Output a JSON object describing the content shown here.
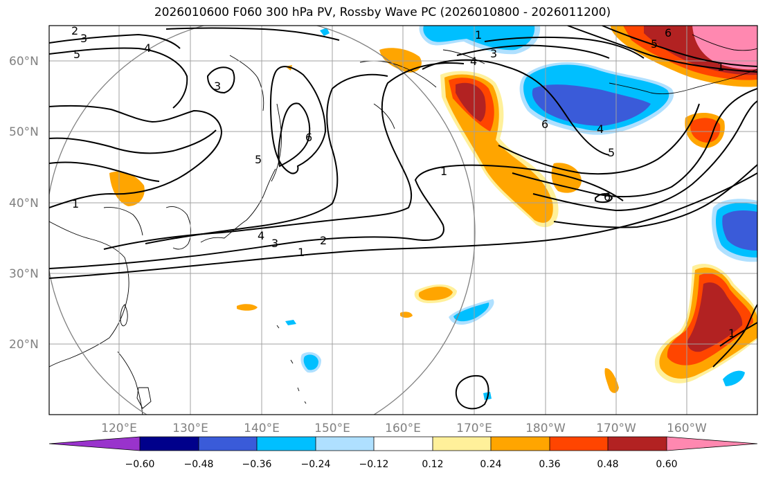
{
  "title": "2026010600 F060 300 hPa PV, Rossby Wave PC (2026010800 - 2026011200)",
  "lat_labels": [
    "60°N",
    "50°N",
    "40°N",
    "30°N",
    "20°N"
  ],
  "lon_labels": [
    "120°E",
    "130°E",
    "140°E",
    "150°E",
    "160°E",
    "170°E",
    "180°W",
    "170°W",
    "160°W"
  ],
  "colorbar": {
    "tick_labels": [
      "−0.60",
      "−0.48",
      "−0.36",
      "−0.24",
      "−0.12",
      "0.12",
      "0.24",
      "0.36",
      "0.48",
      "0.60"
    ],
    "colors": [
      "#9933cc",
      "#00008b",
      "#3a5bd9",
      "#00bfff",
      "#afe0ff",
      "#ffffff",
      "#fff09a",
      "#ffa500",
      "#ff4500",
      "#b22222",
      "#ff88b0"
    ]
  },
  "contour_labels": [
    "2",
    "3",
    "5",
    "4",
    "3",
    "6",
    "5",
    "4",
    "3",
    "2",
    "1",
    "1",
    "4",
    "3",
    "1",
    "1",
    "6",
    "4",
    "5",
    "6",
    "6",
    "5",
    "1",
    "1"
  ]
}
